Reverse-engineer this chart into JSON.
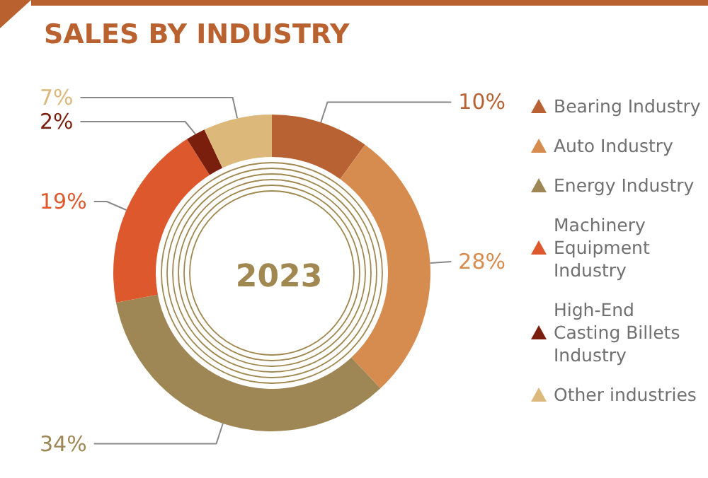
{
  "chart_data": {
    "type": "donut",
    "title": "SALES BY INDUSTRY",
    "annotations": [
      "2023"
    ],
    "categories": [
      "Bearing Industry",
      "Auto Industry",
      "Energy Industry",
      "Machinery Equipment Industry",
      "High-End Casting Billets Industry",
      "Other industries"
    ],
    "values": [
      10,
      28,
      34,
      19,
      2,
      7
    ],
    "colors": [
      "#b86132",
      "#d78c4f",
      "#9e8755",
      "#dd582d",
      "#7a1f0e",
      "#dcb87a"
    ],
    "value_labels": [
      "10%",
      "28%",
      "34%",
      "19%",
      "2%",
      "7%"
    ],
    "legend": "right"
  }
}
